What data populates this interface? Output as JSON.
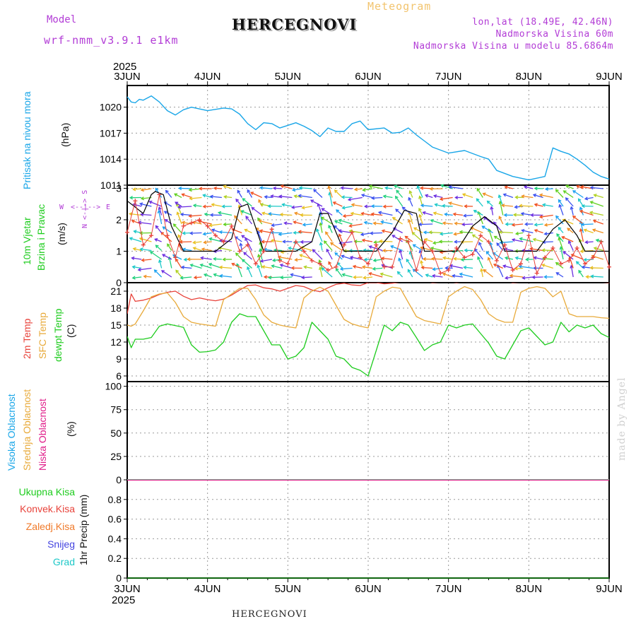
{
  "header": {
    "model_label": "Model",
    "model_name": "wrf-nmm_v3.9.1 e1km",
    "title": "HERCEGNOVI",
    "meteogram_label": "Meteogram",
    "lonlat": "lon,lat (18.49E, 42.46N)",
    "elevation": "Nadmorska Visina 60m",
    "model_elevation": "Nadmorska Visina u modelu 85.6864m"
  },
  "footer": {
    "station": "HERCEGNOVI",
    "credit": "made by Angel"
  },
  "time_axis": {
    "year": "2025",
    "days": [
      "3JUN",
      "4JUN",
      "5JUN",
      "6JUN",
      "7JUN",
      "8JUN",
      "9JUN"
    ]
  },
  "panels": {
    "pressure": {
      "label": "Pritisak na nivou mora",
      "unit": "(hPa)"
    },
    "wind": {
      "label_line1": "10m Vjetar",
      "label_line2": "Brzina i Pravac",
      "unit": "(m/s)",
      "compass_ns": "N <-|-> S",
      "compass_w": "W",
      "compass_e": "E",
      "compass_dir": "<--|-->"
    },
    "temp": {
      "label_2m": "2m Temp",
      "label_sfc": "SFC Temp",
      "label_dewpt": "dewpt Temp",
      "unit": "(C)"
    },
    "cloud": {
      "label_high": "Visoka Oblacnost",
      "label_mid": "Srednja Oblacnost",
      "label_low": "Niska Oblacnost",
      "unit": "(%)"
    },
    "precip": {
      "total": "Ukupna Kisa",
      "conv": "Konvek.Kisa",
      "frozen": "Zaledj.Kisa",
      "snow": "Snijeg",
      "hail": "Grad",
      "unit": "1hr Precip (mm)"
    }
  },
  "colors": {
    "pressure": "#19a6e8",
    "temp2m": "#e8423a",
    "sfc": "#e8aa3a",
    "dewpt": "#1ecc1e",
    "cloud_high": "#19a6e8",
    "cloud_mid": "#e8aa3a",
    "cloud_low": "#e01e8a",
    "precip_total": "#1ecc1e",
    "precip_conv": "#e8423a",
    "precip_frozen": "#f07a2a",
    "precip_snow": "#4444e0",
    "precip_hail": "#1ec8c8",
    "gust": "#000000",
    "wind_marker": "#e8423a"
  },
  "chart_data": [
    {
      "type": "line",
      "title": "Pritisak na nivou mora",
      "ylabel": "(hPa)",
      "ylim": [
        1011,
        1022.5
      ],
      "yticks": [
        1011,
        1014,
        1017,
        1020
      ],
      "x_days": [
        0,
        0.05,
        0.1,
        0.15,
        0.2,
        0.3,
        0.4,
        0.5,
        0.6,
        0.7,
        0.8,
        1.0,
        1.2,
        1.3,
        1.4,
        1.5,
        1.6,
        1.7,
        1.8,
        1.9,
        2.0,
        2.1,
        2.2,
        2.3,
        2.4,
        2.5,
        2.6,
        2.7,
        2.8,
        2.9,
        3.0,
        3.2,
        3.3,
        3.4,
        3.5,
        3.6,
        3.7,
        3.8,
        4.0,
        4.2,
        4.4,
        4.5,
        4.6,
        4.8,
        5.0,
        5.2,
        5.3,
        5.4,
        5.5,
        5.6,
        5.7,
        5.8,
        5.9,
        6.0
      ],
      "values": [
        1021.2,
        1020.6,
        1020.5,
        1020.9,
        1020.8,
        1021.3,
        1020.6,
        1019.6,
        1019.1,
        1019.7,
        1020.0,
        1019.6,
        1019.9,
        1019.8,
        1019.2,
        1018.1,
        1017.4,
        1018.2,
        1018.1,
        1017.6,
        1017.9,
        1018.2,
        1017.8,
        1017.3,
        1016.6,
        1017.6,
        1017.2,
        1017.2,
        1018.1,
        1018.4,
        1017.4,
        1017.6,
        1017.0,
        1017.1,
        1017.6,
        1016.8,
        1016.1,
        1015.4,
        1014.7,
        1015.0,
        1014.3,
        1014.0,
        1012.7,
        1012.0,
        1011.6,
        1012.0,
        1015.3,
        1014.9,
        1014.6,
        1014.0,
        1013.3,
        1012.5,
        1012.0,
        1011.7
      ]
    },
    {
      "type": "line",
      "title": "10m Vjetar Brzina i Pravac",
      "ylabel": "(m/s)",
      "ylim": [
        0,
        3.1
      ],
      "yticks": [
        0,
        1,
        2,
        3
      ],
      "series": [
        {
          "name": "gust",
          "x_days": [
            0,
            0.1,
            0.2,
            0.3,
            0.35,
            0.45,
            0.55,
            0.7,
            1.1,
            1.3,
            1.4,
            1.5,
            1.7,
            2.1,
            2.3,
            2.4,
            2.5,
            2.7,
            3.1,
            3.3,
            3.45,
            3.6,
            3.7,
            4.1,
            4.3,
            4.45,
            4.6,
            4.7,
            5.1,
            5.3,
            5.45,
            5.6,
            5.7,
            6.0
          ],
          "values": [
            2.6,
            2.4,
            2.2,
            2.8,
            2.9,
            2.8,
            1.8,
            1.0,
            1.0,
            1.4,
            2.4,
            2.5,
            1.0,
            1.0,
            1.3,
            2.2,
            2.2,
            1.0,
            1.0,
            1.6,
            2.3,
            2.2,
            1.0,
            1.0,
            1.8,
            2.1,
            1.8,
            1.0,
            1.0,
            1.7,
            2.0,
            1.5,
            1.0,
            1.0
          ]
        },
        {
          "name": "speed",
          "x_days": [
            0,
            0.1,
            0.2,
            0.3,
            0.4,
            0.5,
            0.6,
            0.7,
            0.8,
            0.9,
            1.0,
            1.1,
            1.2,
            1.3,
            1.4,
            1.5,
            1.6,
            1.7,
            1.8,
            1.9,
            2.0,
            2.1,
            2.2,
            2.3,
            2.4,
            2.5,
            2.6,
            2.7,
            2.8,
            2.9,
            3.0,
            3.1,
            3.2,
            3.3,
            3.4,
            3.5,
            3.6,
            3.7,
            3.8,
            3.9,
            4.0,
            4.1,
            4.2,
            4.3,
            4.4,
            4.5,
            4.6,
            4.7,
            4.8,
            4.9,
            5.0,
            5.1,
            5.2,
            5.3,
            5.4,
            5.5,
            5.6,
            5.7,
            5.8,
            5.9,
            6.0
          ],
          "values": [
            1.6,
            2.6,
            1.2,
            1.5,
            2.8,
            1.5,
            0.8,
            1.8,
            1.9,
            2.0,
            1.8,
            1.5,
            1.3,
            1.8,
            1.0,
            1.2,
            0.6,
            1.0,
            1.7,
            0.7,
            0.6,
            1.3,
            1.0,
            0.7,
            0.6,
            0.4,
            0.5,
            1.2,
            1.6,
            0.8,
            0.6,
            1.2,
            0.5,
            0.5,
            1.4,
            1.3,
            0.4,
            1.3,
            1.0,
            0.3,
            0.4,
            1.1,
            0.8,
            0.9,
            1.5,
            1.3,
            0.7,
            1.2,
            0.4,
            0.6,
            1.5,
            0.3,
            0.8,
            1.1,
            0.6,
            0.7,
            1.1,
            0.6,
            0.8,
            1.3,
            0.5
          ]
        }
      ]
    },
    {
      "type": "line",
      "title": "Temperature",
      "ylabel": "(C)",
      "ylim": [
        5,
        22.5
      ],
      "yticks": [
        6,
        9,
        12,
        15,
        18,
        21
      ],
      "x_days": [
        0,
        0.05,
        0.1,
        0.2,
        0.3,
        0.4,
        0.5,
        0.6,
        0.7,
        0.8,
        0.9,
        1.0,
        1.1,
        1.2,
        1.3,
        1.4,
        1.5,
        1.6,
        1.7,
        1.8,
        1.9,
        2.0,
        2.1,
        2.2,
        2.3,
        2.4,
        2.5,
        2.6,
        2.7,
        2.8,
        2.9,
        3.0,
        3.1,
        3.2,
        3.3,
        3.4,
        3.5,
        3.6,
        3.7,
        3.8,
        3.9,
        4.0,
        4.1,
        4.2,
        4.3,
        4.4,
        4.5,
        4.6,
        4.7,
        4.8,
        4.9,
        5.0,
        5.1,
        5.2,
        5.3,
        5.4,
        5.5,
        5.6,
        5.7,
        5.8,
        5.9,
        6.0
      ],
      "series": [
        {
          "name": "2m Temp",
          "values": [
            17.0,
            20.5,
            19.2,
            19.4,
            19.8,
            20.4,
            20.8,
            21.0,
            20.1,
            19.5,
            19.8,
            19.5,
            19.3,
            19.6,
            20.3,
            21.2,
            22.0,
            22.1,
            21.6,
            21.4,
            21.0,
            21.5,
            22.0,
            21.8,
            21.2,
            20.9,
            21.6,
            22.2,
            22.4,
            22.1,
            22.0,
            22.5,
            22.5,
            22.3,
            22.4,
            22.6,
            22.6,
            22.7,
            22.8,
            22.5,
            22.6,
            22.7,
            22.5,
            22.7,
            22.9,
            22.9,
            22.6,
            22.7,
            22.8,
            22.5,
            22.6,
            22.9,
            22.9,
            22.8,
            22.6,
            22.7,
            22.9,
            22.8,
            22.7,
            22.9,
            22.6,
            22.5
          ]
        },
        {
          "name": "SFC Temp",
          "values": [
            15.0,
            14.8,
            15.2,
            17.5,
            20.0,
            20.5,
            20.7,
            19.0,
            16.5,
            15.5,
            15.2,
            15.0,
            14.8,
            19.5,
            20.5,
            21.5,
            21.5,
            19.5,
            16.8,
            15.5,
            15.0,
            14.7,
            14.5,
            19.8,
            21.0,
            21.7,
            21.0,
            18.5,
            16.0,
            15.2,
            14.8,
            14.5,
            20.0,
            21.0,
            21.7,
            21.5,
            19.0,
            16.5,
            15.8,
            15.5,
            15.2,
            20.0,
            21.0,
            21.8,
            21.3,
            19.5,
            17.0,
            16.0,
            15.5,
            15.5,
            20.8,
            21.5,
            21.8,
            21.5,
            20.0,
            21.0,
            17.0,
            16.5,
            16.5,
            16.5,
            16.3,
            16.2
          ]
        },
        {
          "name": "dewpt Temp",
          "values": [
            13.0,
            11.0,
            12.5,
            12.5,
            12.8,
            14.8,
            15.2,
            14.9,
            14.6,
            11.5,
            10.2,
            10.3,
            10.6,
            12.0,
            15.5,
            17.0,
            16.5,
            16.5,
            14.0,
            11.5,
            11.5,
            9.0,
            9.5,
            11.0,
            15.5,
            14.0,
            12.5,
            9.5,
            9.0,
            7.5,
            7.0,
            6.0,
            10.5,
            15.0,
            14.0,
            15.5,
            15.0,
            12.8,
            10.5,
            11.5,
            12.0,
            15.0,
            14.5,
            15.0,
            15.2,
            13.5,
            11.8,
            9.5,
            9.0,
            11.5,
            14.0,
            14.5,
            13.0,
            11.5,
            12.0,
            15.5,
            13.8,
            15.0,
            14.5,
            15.0,
            13.5,
            12.8
          ]
        }
      ]
    },
    {
      "type": "line",
      "title": "Oblacnost",
      "ylabel": "(%)",
      "ylim": [
        0,
        105
      ],
      "yticks": [
        0,
        25,
        50,
        75,
        100
      ],
      "series": [
        {
          "name": "Visoka Oblacnost",
          "values": [
            0,
            0
          ]
        },
        {
          "name": "Srednja Oblacnost",
          "values": [
            0,
            0
          ]
        },
        {
          "name": "Niska Oblacnost",
          "values": [
            0,
            0
          ]
        }
      ]
    },
    {
      "type": "bar",
      "title": "1hr Precip",
      "ylabel": "1hr Precip (mm)",
      "ylim": [
        0,
        1.0
      ],
      "yticks": [
        "0",
        "0.2",
        "0.4",
        "0.6",
        "0.8"
      ],
      "values": [
        0
      ]
    }
  ]
}
